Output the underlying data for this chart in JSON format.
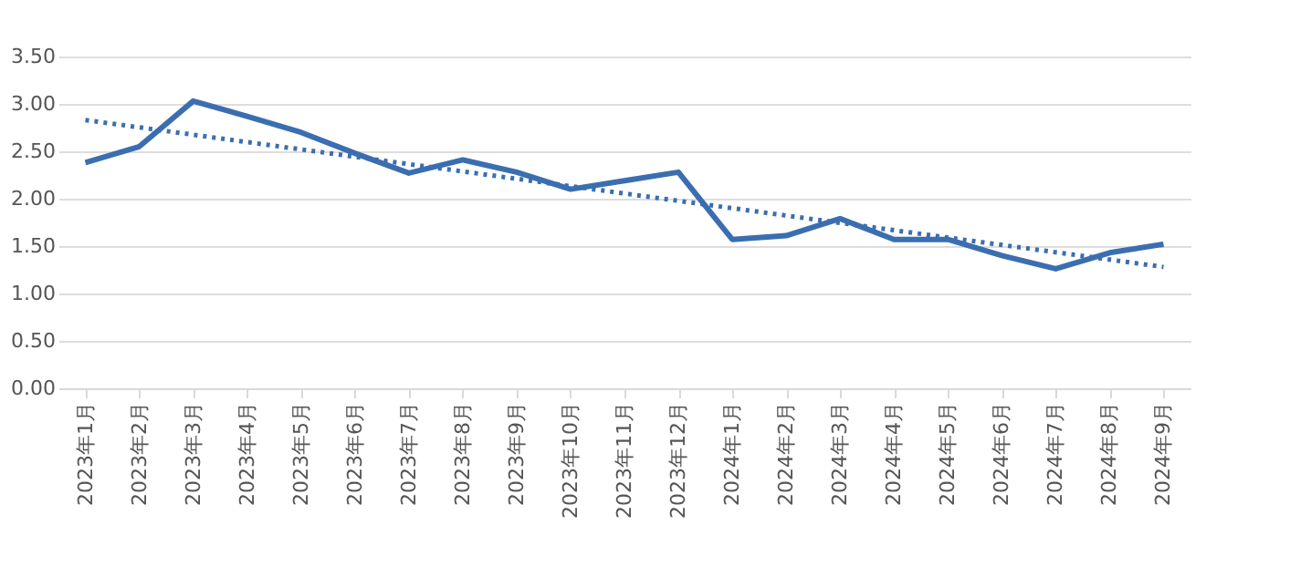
{
  "chart_data": {
    "type": "line",
    "categories": [
      "2023年1月",
      "2023年2月",
      "2023年3月",
      "2023年4月",
      "2023年5月",
      "2023年6月",
      "2023年7月",
      "2023年8月",
      "2023年9月",
      "2023年10月",
      "2023年11月",
      "2023年12月",
      "2024年1月",
      "2024年2月",
      "2024年3月",
      "2024年4月",
      "2024年5月",
      "2024年6月",
      "2024年7月",
      "2024年8月",
      "2024年9月"
    ],
    "series": [
      {
        "color": "#3b6eb0",
        "line_style": "solid",
        "values": [
          2.38,
          2.55,
          3.03,
          2.87,
          2.7,
          2.48,
          2.27,
          2.41,
          2.28,
          2.1,
          2.19,
          2.28,
          1.57,
          1.61,
          1.79,
          1.57,
          1.57,
          1.4,
          1.26,
          1.43,
          1.52
        ]
      },
      {
        "type": "line",
        "color": "#3b6eb0",
        "line_style": "dotted",
        "x": [
          "2023年1月",
          "2024年9月"
        ],
        "values": [
          2.83,
          1.28
        ]
      }
    ],
    "ylim": [
      0,
      3.5
    ],
    "yticks": [
      {
        "value": 0,
        "label": "0.00"
      },
      {
        "value": 0.5,
        "label": "0.50"
      },
      {
        "value": 1,
        "label": "1.00"
      },
      {
        "value": 1.5,
        "label": "1.50"
      },
      {
        "value": 2,
        "label": "2.00"
      },
      {
        "value": 2.5,
        "label": "2.50"
      },
      {
        "value": 3,
        "label": "3.00"
      },
      {
        "value": 3.5,
        "label": "3.50"
      }
    ],
    "grid": "y",
    "marker": "none"
  }
}
